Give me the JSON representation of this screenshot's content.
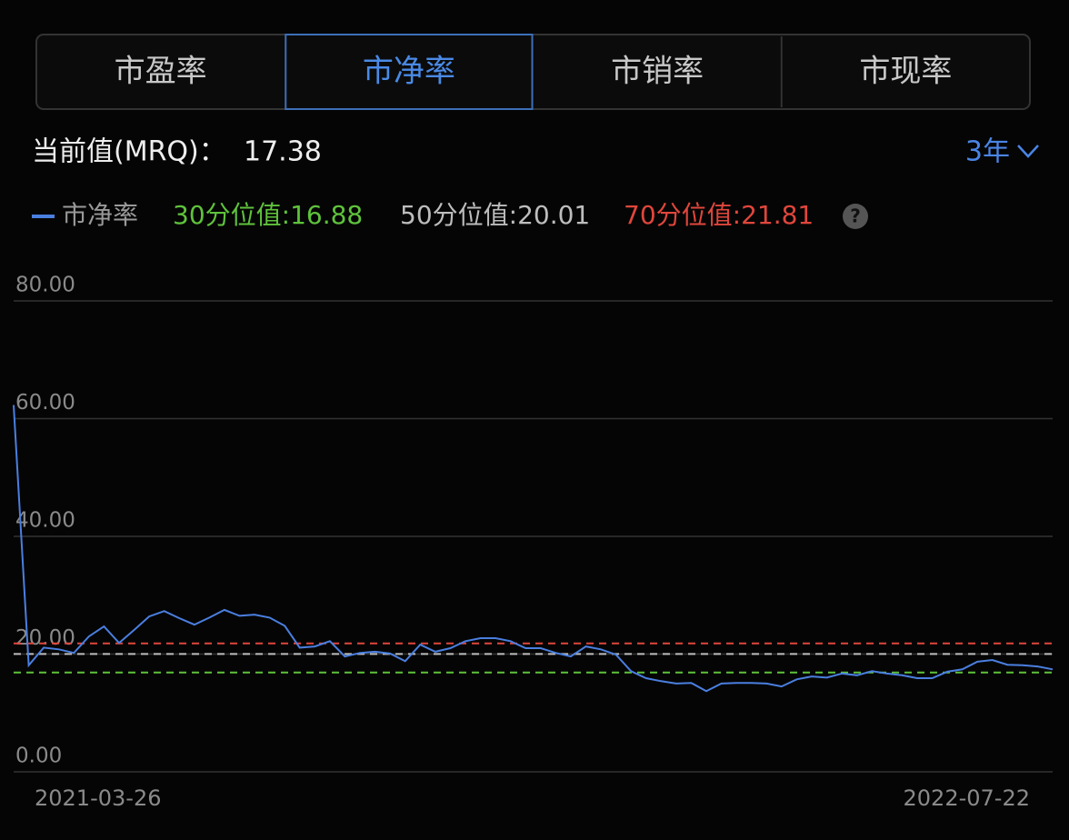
{
  "tabs": [
    "市盈率",
    "市净率",
    "市销率",
    "市现率"
  ],
  "active_tab": 1,
  "current_label": "当前值(MRQ)：",
  "current_value": 17.38,
  "period": "3年",
  "help": "?",
  "chart_data": {
    "type": "line",
    "categories": [
      "2021-03-26",
      null,
      null,
      null,
      null,
      null,
      null,
      null,
      null,
      null,
      null,
      null,
      null,
      null,
      null,
      null,
      null,
      null,
      null,
      null,
      null,
      null,
      null,
      null,
      null,
      null,
      null,
      null,
      null,
      null,
      null,
      null,
      null,
      null,
      null,
      null,
      null,
      null,
      null,
      null,
      null,
      null,
      null,
      null,
      null,
      null,
      null,
      null,
      null,
      null,
      null,
      null,
      null,
      null,
      null,
      null,
      null,
      null,
      null,
      null,
      null,
      null,
      null,
      null,
      null,
      null,
      null,
      null,
      null,
      "2022-07-22"
    ],
    "series": [
      {
        "name": "市净率",
        "color": "#4a7fe0",
        "values": [
          62.3,
          18.1,
          21.1,
          20.8,
          20.2,
          23,
          24.7,
          21.9,
          24.1,
          26.4,
          27.3,
          26.1,
          25,
          26.2,
          27.5,
          26.5,
          26.7,
          26.2,
          24.8,
          21.1,
          21.3,
          22.2,
          19.6,
          20.2,
          20.4,
          20.1,
          18.8,
          21.6,
          20.4,
          21,
          22.2,
          22.7,
          22.7,
          22.2,
          21,
          21,
          20.2,
          19.6,
          21.3,
          20.8,
          19.9,
          17.1,
          15.9,
          15.4,
          15,
          15.1,
          13.7,
          15,
          15.1,
          15.1,
          15,
          14.5,
          15.7,
          16.2,
          16,
          16.7,
          16.4,
          17.1,
          16.7,
          16.4,
          15.9,
          15.9,
          17,
          17.4,
          18.7,
          19,
          18.2,
          18.1,
          17.9,
          17.4
        ]
      }
    ],
    "reference_lines": [
      {
        "label": "30分位值:16.88",
        "value": 16.88,
        "color": "#5fc23c"
      },
      {
        "label": "50分位值:20.01",
        "value": 20.01,
        "color": "#bdbdbd"
      },
      {
        "label": "70分位值:21.81",
        "value": 21.81,
        "color": "#e0463c"
      }
    ],
    "ylim": [
      0,
      80
    ],
    "yticks": [
      {
        "value": 0,
        "label": "0.00"
      },
      {
        "value": 20,
        "label": "20.00"
      },
      {
        "value": 40,
        "label": "40.00"
      },
      {
        "value": 60,
        "label": "60.00"
      },
      {
        "value": 80,
        "label": "80.00"
      }
    ],
    "grid": true
  }
}
